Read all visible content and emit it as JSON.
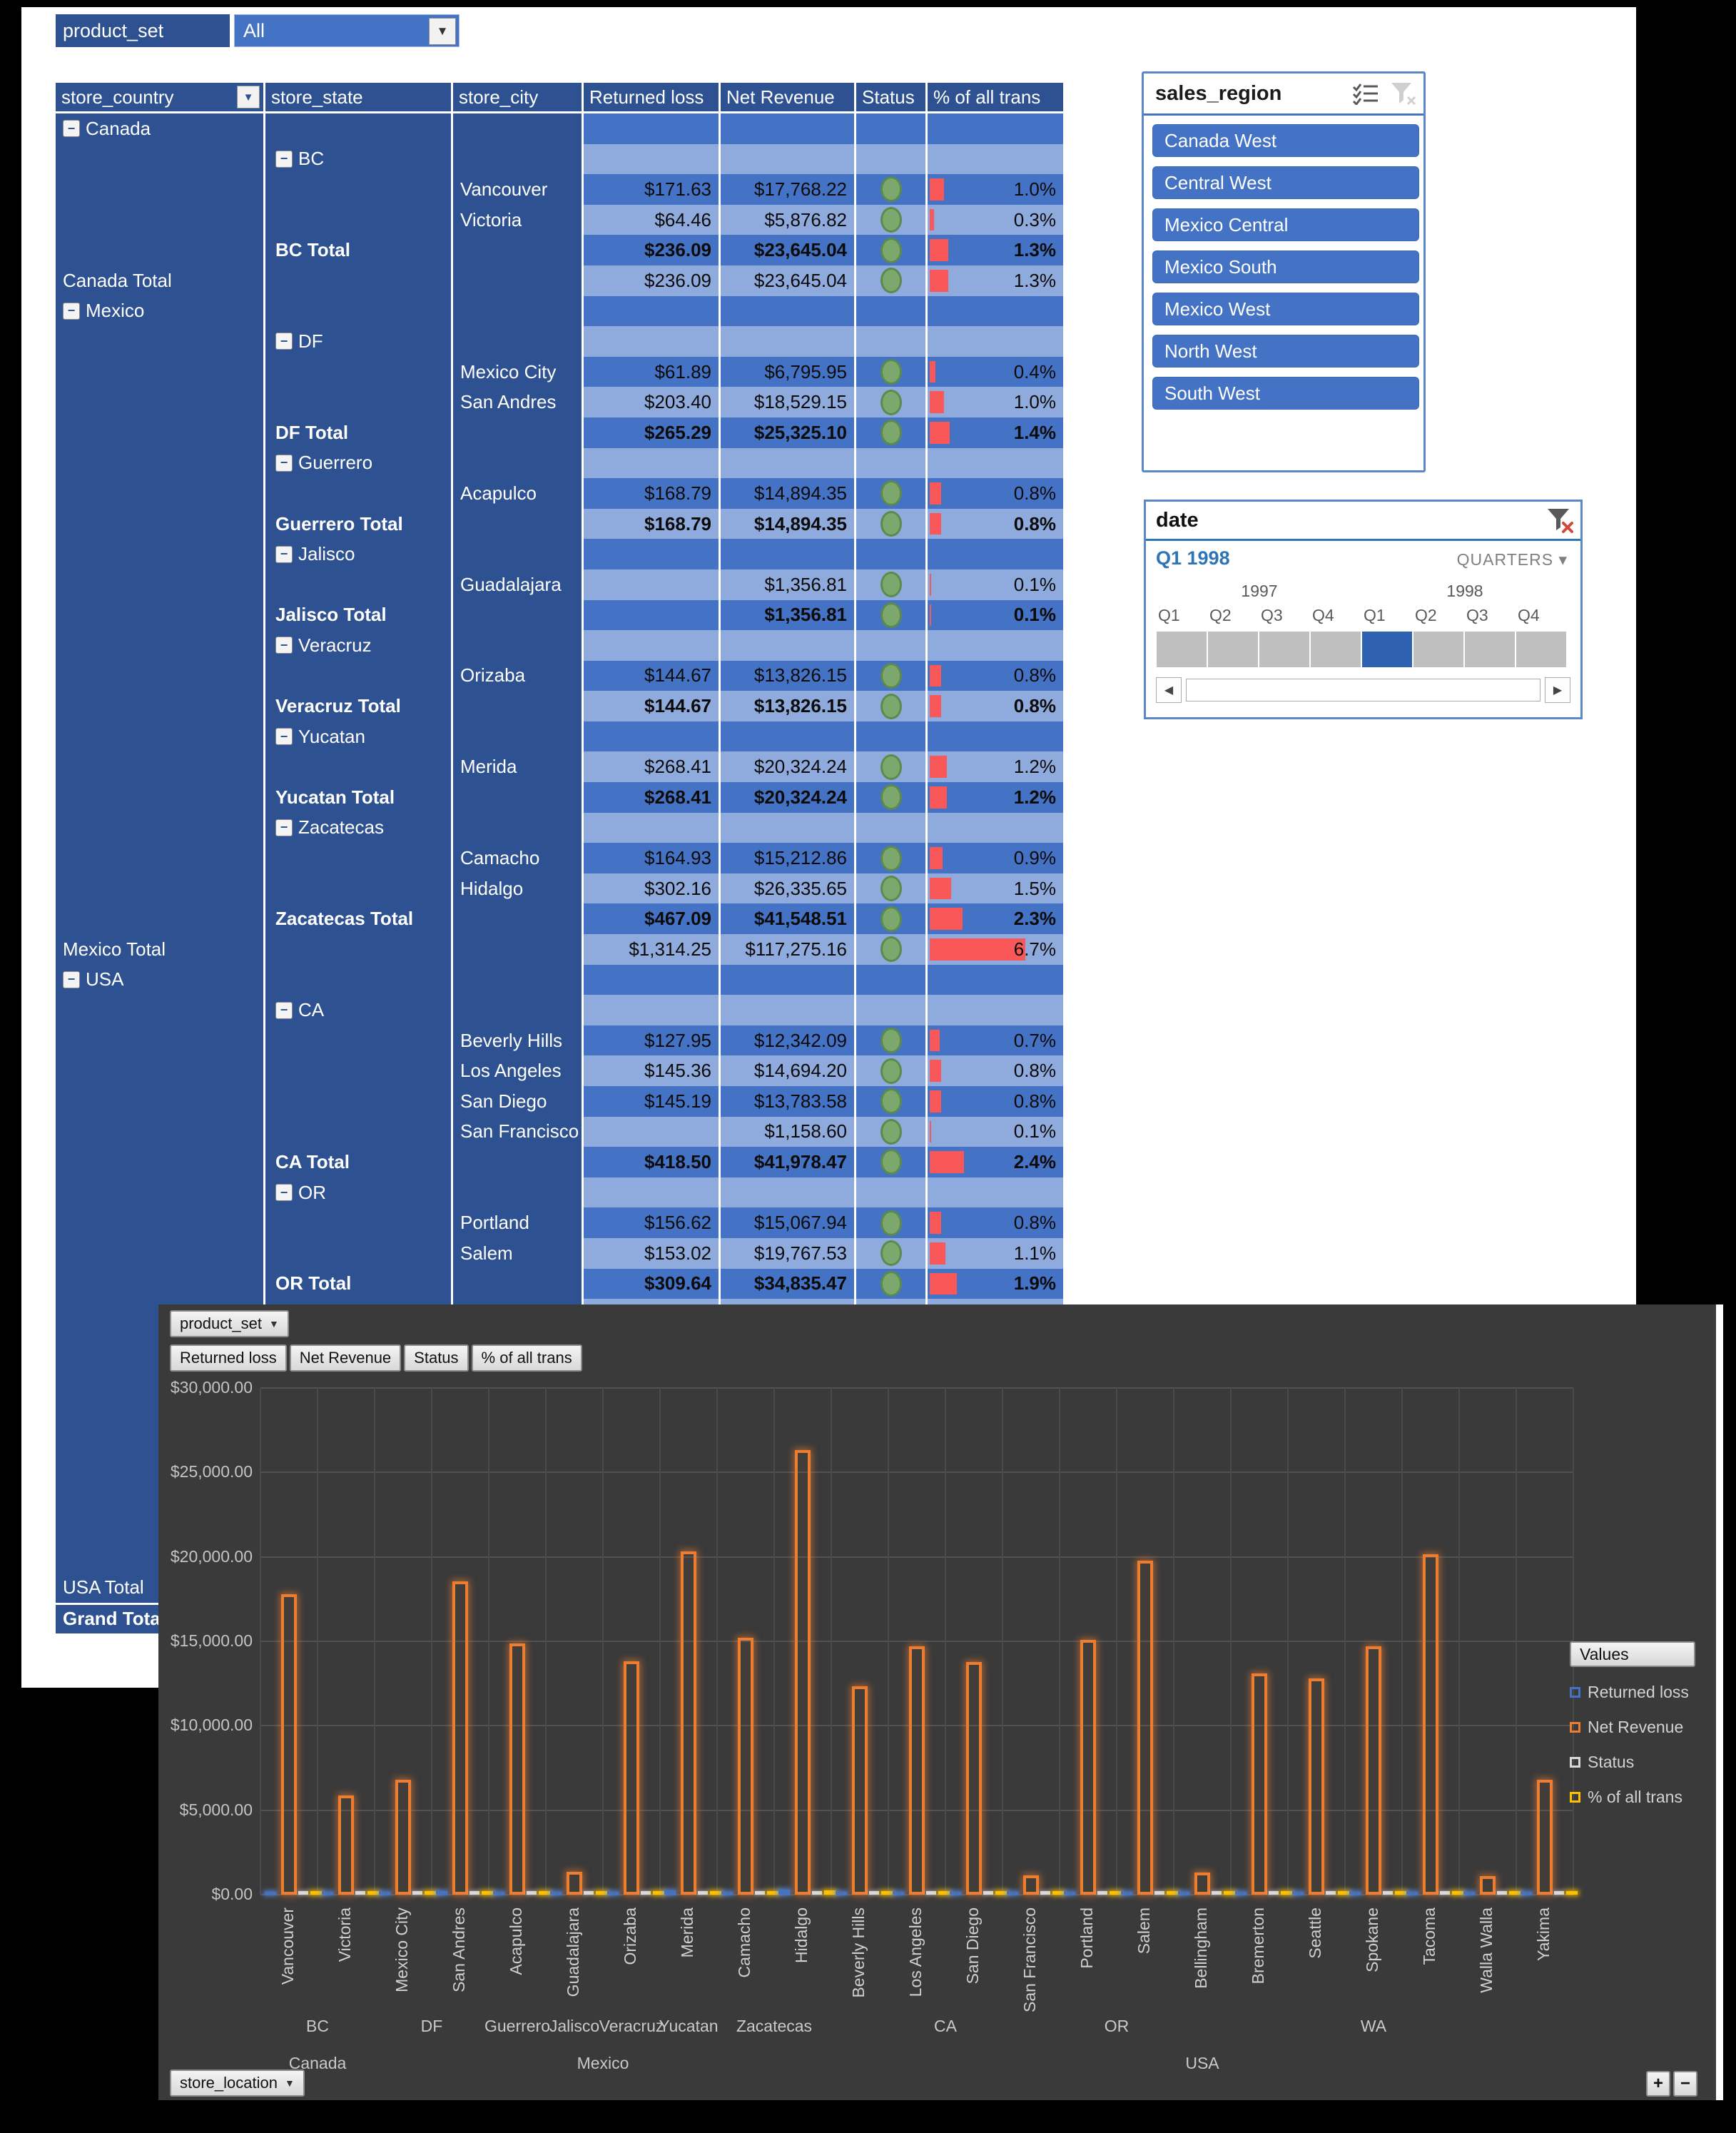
{
  "report_filter": {
    "label": "product_set",
    "value": "All"
  },
  "pivot": {
    "headers": [
      "store_country",
      "store_state",
      "store_city",
      "Returned loss",
      "Net Revenue",
      "Status",
      "% of all trans"
    ],
    "rows": [
      {
        "t": "country",
        "label": "Canada",
        "expand": true
      },
      {
        "t": "state",
        "label": "BC",
        "expand": true
      },
      {
        "t": "city",
        "label": "Vancouver",
        "rl": "$171.63",
        "nr": "$17,768.22",
        "status": true,
        "pct": "1.0%"
      },
      {
        "t": "city",
        "label": "Victoria",
        "rl": "$64.46",
        "nr": "$5,876.82",
        "status": true,
        "pct": "0.3%"
      },
      {
        "t": "state",
        "label": "BC Total",
        "bold": true,
        "rl": "$236.09",
        "nr": "$23,645.04",
        "status": true,
        "pct": "1.3%"
      },
      {
        "t": "country",
        "label": "Canada Total",
        "rl": "$236.09",
        "nr": "$23,645.04",
        "status": true,
        "pct": "1.3%"
      },
      {
        "t": "country",
        "label": "Mexico",
        "expand": true
      },
      {
        "t": "state",
        "label": "DF",
        "expand": true
      },
      {
        "t": "city",
        "label": "Mexico City",
        "rl": "$61.89",
        "nr": "$6,795.95",
        "status": true,
        "pct": "0.4%"
      },
      {
        "t": "city",
        "label": "San Andres",
        "rl": "$203.40",
        "nr": "$18,529.15",
        "status": true,
        "pct": "1.0%"
      },
      {
        "t": "state",
        "label": "DF Total",
        "bold": true,
        "rl": "$265.29",
        "nr": "$25,325.10",
        "status": true,
        "pct": "1.4%"
      },
      {
        "t": "state",
        "label": "Guerrero",
        "expand": true
      },
      {
        "t": "city",
        "label": "Acapulco",
        "rl": "$168.79",
        "nr": "$14,894.35",
        "status": true,
        "pct": "0.8%"
      },
      {
        "t": "state",
        "label": "Guerrero Total",
        "bold": true,
        "rl": "$168.79",
        "nr": "$14,894.35",
        "status": true,
        "pct": "0.8%"
      },
      {
        "t": "state",
        "label": "Jalisco",
        "expand": true
      },
      {
        "t": "city",
        "label": "Guadalajara",
        "rl": "",
        "nr": "$1,356.81",
        "status": true,
        "pct": "0.1%"
      },
      {
        "t": "state",
        "label": "Jalisco Total",
        "bold": true,
        "rl": "",
        "nr": "$1,356.81",
        "status": true,
        "pct": "0.1%"
      },
      {
        "t": "state",
        "label": "Veracruz",
        "expand": true
      },
      {
        "t": "city",
        "label": "Orizaba",
        "rl": "$144.67",
        "nr": "$13,826.15",
        "status": true,
        "pct": "0.8%"
      },
      {
        "t": "state",
        "label": "Veracruz Total",
        "bold": true,
        "rl": "$144.67",
        "nr": "$13,826.15",
        "status": true,
        "pct": "0.8%"
      },
      {
        "t": "state",
        "label": "Yucatan",
        "expand": true
      },
      {
        "t": "city",
        "label": "Merida",
        "rl": "$268.41",
        "nr": "$20,324.24",
        "status": true,
        "pct": "1.2%"
      },
      {
        "t": "state",
        "label": "Yucatan Total",
        "bold": true,
        "rl": "$268.41",
        "nr": "$20,324.24",
        "status": true,
        "pct": "1.2%"
      },
      {
        "t": "state",
        "label": "Zacatecas",
        "expand": true
      },
      {
        "t": "city",
        "label": "Camacho",
        "rl": "$164.93",
        "nr": "$15,212.86",
        "status": true,
        "pct": "0.9%"
      },
      {
        "t": "city",
        "label": "Hidalgo",
        "rl": "$302.16",
        "nr": "$26,335.65",
        "status": true,
        "pct": "1.5%"
      },
      {
        "t": "state",
        "label": "Zacatecas Total",
        "bold": true,
        "rl": "$467.09",
        "nr": "$41,548.51",
        "status": true,
        "pct": "2.3%"
      },
      {
        "t": "country",
        "label": "Mexico Total",
        "rl": "$1,314.25",
        "nr": "$117,275.16",
        "status": true,
        "pct": "6.7%"
      },
      {
        "t": "country",
        "label": "USA",
        "expand": true
      },
      {
        "t": "state",
        "label": "CA",
        "expand": true
      },
      {
        "t": "city",
        "label": "Beverly Hills",
        "rl": "$127.95",
        "nr": "$12,342.09",
        "status": true,
        "pct": "0.7%"
      },
      {
        "t": "city",
        "label": "Los Angeles",
        "rl": "$145.36",
        "nr": "$14,694.20",
        "status": true,
        "pct": "0.8%"
      },
      {
        "t": "city",
        "label": "San Diego",
        "rl": "$145.19",
        "nr": "$13,783.58",
        "status": true,
        "pct": "0.8%"
      },
      {
        "t": "city",
        "label": "San Francisco",
        "rl": "",
        "nr": "$1,158.60",
        "status": true,
        "pct": "0.1%"
      },
      {
        "t": "state",
        "label": "CA Total",
        "bold": true,
        "rl": "$418.50",
        "nr": "$41,978.47",
        "status": true,
        "pct": "2.4%"
      },
      {
        "t": "state",
        "label": "OR",
        "expand": true
      },
      {
        "t": "city",
        "label": "Portland",
        "rl": "$156.62",
        "nr": "$15,067.94",
        "status": true,
        "pct": "0.8%"
      },
      {
        "t": "city",
        "label": "Salem",
        "rl": "$153.02",
        "nr": "$19,767.53",
        "status": true,
        "pct": "1.1%"
      },
      {
        "t": "state",
        "label": "OR Total",
        "bold": true,
        "rl": "$309.64",
        "nr": "$34,835.47",
        "status": true,
        "pct": "1.9%"
      },
      {
        "t": "spacer"
      },
      {
        "t": "spacer"
      },
      {
        "t": "spacer"
      },
      {
        "t": "spacer"
      },
      {
        "t": "spacer"
      },
      {
        "t": "spacer"
      },
      {
        "t": "spacer"
      },
      {
        "t": "spacer"
      },
      {
        "t": "spacer"
      },
      {
        "t": "country",
        "label": "USA Total"
      },
      {
        "t": "country",
        "label": "Grand Total",
        "bold": true,
        "grand": true
      }
    ]
  },
  "slicer": {
    "title": "sales_region",
    "buttons": [
      "Canada West",
      "Central West",
      "Mexico Central",
      "Mexico South",
      "Mexico West",
      "North West",
      "South West"
    ]
  },
  "timeline": {
    "title": "date",
    "selection": "Q1 1998",
    "period_level": "QUARTERS",
    "years": [
      "1997",
      "1998"
    ],
    "quarters": [
      "Q1",
      "Q2",
      "Q3",
      "Q4",
      "Q1",
      "Q2",
      "Q3",
      "Q4"
    ],
    "selected_quarter_index": 4
  },
  "chart": {
    "pivot_field_buttons": {
      "axis": "product_set",
      "values": [
        "Returned loss",
        "Net Revenue",
        "Status",
        "% of all trans"
      ],
      "bottom": "store_location"
    },
    "legend": {
      "title": "Values",
      "entries": [
        {
          "label": "Returned loss",
          "color": "#4472C4"
        },
        {
          "label": "Net Revenue",
          "color": "#ED7D31"
        },
        {
          "label": "Status",
          "color": "#D9D9D9"
        },
        {
          "label": "% of all trans",
          "color": "#FFC000"
        }
      ]
    },
    "zoom_buttons": [
      "+",
      "−"
    ]
  },
  "chart_data": {
    "type": "bar",
    "title": "",
    "xlabel": "store_location",
    "ylabel": "",
    "ylim": [
      0,
      30000
    ],
    "grid": true,
    "legend_position": "right",
    "yticks": [
      "$0.00",
      "$5,000.00",
      "$10,000.00",
      "$15,000.00",
      "$20,000.00",
      "$25,000.00",
      "$30,000.00"
    ],
    "categories": [
      "Vancouver",
      "Victoria",
      "Mexico City",
      "San Andres",
      "Acapulco",
      "Guadalajara",
      "Orizaba",
      "Merida",
      "Camacho",
      "Hidalgo",
      "Beverly Hills",
      "Los Angeles",
      "San Diego",
      "San Francisco",
      "Portland",
      "Salem",
      "Bellingham",
      "Bremerton",
      "Seattle",
      "Spokane",
      "Tacoma",
      "Walla Walla",
      "Yakima"
    ],
    "series": [
      {
        "name": "Returned loss",
        "color": "#4472C4",
        "values": [
          171.63,
          64.46,
          61.89,
          203.4,
          168.79,
          0,
          144.67,
          268.41,
          164.93,
          302.16,
          127.95,
          145.36,
          145.19,
          0,
          156.62,
          153.02,
          150,
          150,
          150,
          150,
          150,
          150,
          150
        ]
      },
      {
        "name": "Net Revenue",
        "color": "#ED7D31",
        "values": [
          17768.22,
          5876.82,
          6795.95,
          18529.15,
          14894.35,
          1356.81,
          13826.15,
          20324.24,
          15212.86,
          26335.65,
          12342.09,
          14694.2,
          13783.58,
          1158.6,
          15067.94,
          19767.53,
          1300,
          13100,
          12800,
          14700,
          20150,
          1100,
          6800
        ]
      },
      {
        "name": "Status",
        "color": "#D9D9D9",
        "values": [
          0,
          0,
          0,
          0,
          0,
          0,
          0,
          0,
          0,
          0,
          0,
          0,
          0,
          0,
          0,
          0,
          0,
          0,
          0,
          0,
          0,
          0,
          0
        ]
      },
      {
        "name": "% of all trans",
        "color": "#FFC000",
        "values": [
          1.0,
          0.3,
          0.4,
          1.0,
          0.8,
          0.1,
          0.8,
          1.2,
          0.9,
          1.5,
          0.7,
          0.8,
          0.8,
          0.1,
          0.8,
          1.1,
          0.1,
          0.7,
          0.7,
          0.8,
          1.1,
          0.1,
          0.4
        ]
      }
    ],
    "state_groups": [
      {
        "label": "BC",
        "from": 0,
        "to": 1
      },
      {
        "label": "DF",
        "from": 2,
        "to": 3
      },
      {
        "label": "Guerrero",
        "from": 4,
        "to": 4
      },
      {
        "label": "Jalisco",
        "from": 5,
        "to": 5
      },
      {
        "label": "Veracruz",
        "from": 6,
        "to": 6
      },
      {
        "label": "Yucatan",
        "from": 7,
        "to": 7
      },
      {
        "label": "Zacatecas",
        "from": 8,
        "to": 9
      },
      {
        "label": "CA",
        "from": 10,
        "to": 13
      },
      {
        "label": "OR",
        "from": 14,
        "to": 15
      },
      {
        "label": "WA",
        "from": 16,
        "to": 22
      }
    ],
    "country_groups": [
      {
        "label": "Canada",
        "from": 0,
        "to": 1
      },
      {
        "label": "Mexico",
        "from": 2,
        "to": 9
      },
      {
        "label": "USA",
        "from": 10,
        "to": 22
      }
    ]
  },
  "colors": {
    "band_dark": "#4472C4",
    "band_light": "#8FAADC",
    "header_navy": "#2E5191",
    "bar_red": "#F95758",
    "status_green": "#7CA86D",
    "chart_bg": "#3A3A3A"
  }
}
